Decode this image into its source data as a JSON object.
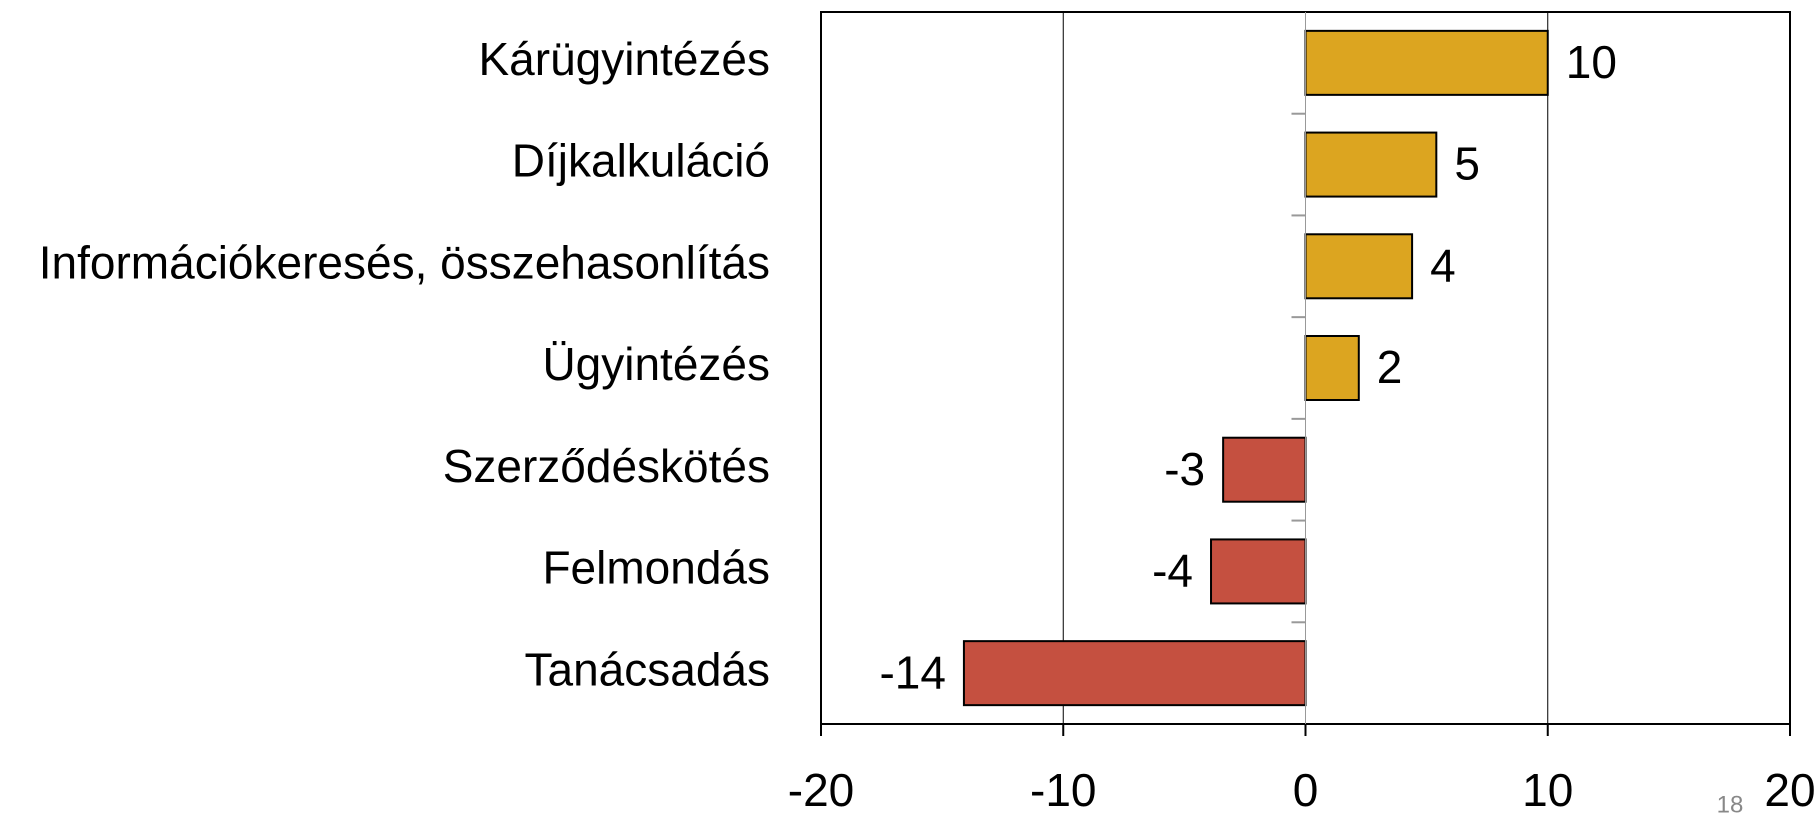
{
  "chart_data": {
    "type": "bar",
    "orientation": "horizontal",
    "categories": [
      "Kárügyintézés",
      "Díjkalkuláció",
      "Információkeresés, összehasonlítás",
      "Ügyintézés",
      "Szerződéskötés",
      "Felmondás",
      "Tanácsadás"
    ],
    "values": [
      10,
      5.4,
      4.4,
      2.2,
      -3.4,
      -3.9,
      -14.1
    ],
    "value_labels": [
      "10",
      "5",
      "4",
      "2",
      "-3",
      "-4",
      "-14"
    ],
    "colors": [
      "#dca520",
      "#dca520",
      "#dca520",
      "#dca520",
      "#c55040",
      "#c55040",
      "#c55040"
    ],
    "xlim": [
      -20,
      20
    ],
    "xticks": [
      -20,
      -10,
      0,
      10,
      20
    ],
    "grid": true
  },
  "page_number": "18"
}
